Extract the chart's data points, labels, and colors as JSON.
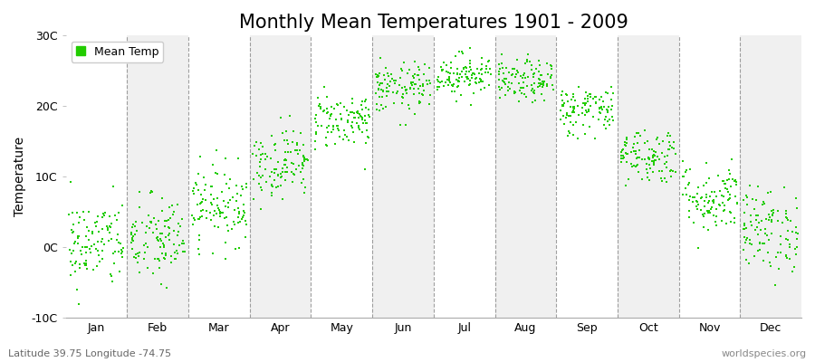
{
  "title": "Monthly Mean Temperatures 1901 - 2009",
  "ylabel": "Temperature",
  "footnote_left": "Latitude 39.75 Longitude -74.75",
  "footnote_right": "worldspecies.org",
  "monthly_means": [
    0.5,
    1.0,
    6.0,
    12.0,
    18.0,
    22.5,
    24.5,
    23.5,
    19.5,
    13.0,
    7.0,
    2.5
  ],
  "monthly_stds": [
    3.2,
    3.2,
    2.8,
    2.5,
    2.0,
    1.8,
    1.5,
    1.5,
    1.8,
    2.0,
    2.5,
    3.0
  ],
  "n_years": 109,
  "dot_color": "#22cc00",
  "background_color": "#ffffff",
  "plot_bg_color": "#f0f0f0",
  "alt_bg_color": "#ffffff",
  "ylim": [
    -10,
    30
  ],
  "yticks": [
    -10,
    0,
    10,
    20,
    30
  ],
  "ytick_labels": [
    "-10C",
    "0C",
    "10C",
    "20C",
    "30C"
  ],
  "month_names": [
    "Jan",
    "Feb",
    "Mar",
    "Apr",
    "May",
    "Jun",
    "Jul",
    "Aug",
    "Sep",
    "Oct",
    "Nov",
    "Dec"
  ],
  "legend_label": "Mean Temp",
  "title_fontsize": 15,
  "axis_label_fontsize": 10,
  "tick_fontsize": 9,
  "footnote_fontsize": 8,
  "marker_size": 3,
  "seed": 42
}
